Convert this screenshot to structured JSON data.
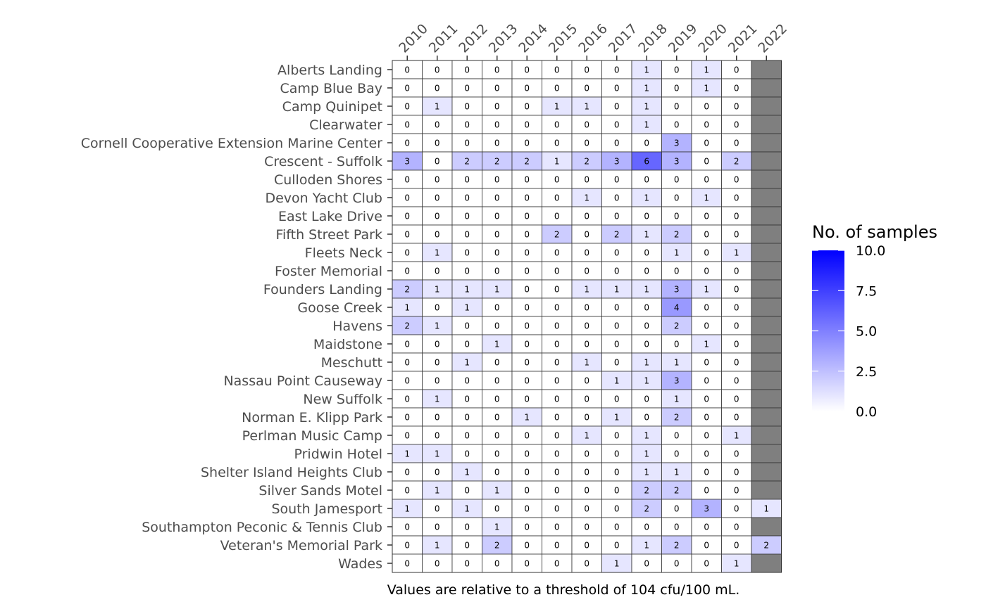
{
  "chart_data": {
    "type": "heatmap",
    "columns": [
      "2010",
      "2011",
      "2012",
      "2013",
      "2014",
      "2015",
      "2016",
      "2017",
      "2018",
      "2019",
      "2020",
      "2021",
      "2022"
    ],
    "rows": [
      {
        "name": "Alberts Landing",
        "values": [
          0,
          0,
          0,
          0,
          0,
          0,
          0,
          0,
          1,
          0,
          1,
          0,
          null
        ]
      },
      {
        "name": "Camp Blue Bay",
        "values": [
          0,
          0,
          0,
          0,
          0,
          0,
          0,
          0,
          1,
          0,
          1,
          0,
          null
        ]
      },
      {
        "name": "Camp Quinipet",
        "values": [
          0,
          1,
          0,
          0,
          0,
          1,
          1,
          0,
          1,
          0,
          0,
          0,
          null
        ]
      },
      {
        "name": "Clearwater",
        "values": [
          0,
          0,
          0,
          0,
          0,
          0,
          0,
          0,
          1,
          0,
          0,
          0,
          null
        ]
      },
      {
        "name": "Cornell Cooperative Extension Marine Center",
        "values": [
          0,
          0,
          0,
          0,
          0,
          0,
          0,
          0,
          0,
          3,
          0,
          0,
          null
        ]
      },
      {
        "name": "Crescent - Suffolk",
        "values": [
          3,
          0,
          2,
          2,
          2,
          1,
          2,
          3,
          6,
          3,
          0,
          2,
          null
        ]
      },
      {
        "name": "Culloden Shores",
        "values": [
          0,
          0,
          0,
          0,
          0,
          0,
          0,
          0,
          0,
          0,
          0,
          0,
          null
        ]
      },
      {
        "name": "Devon Yacht Club",
        "values": [
          0,
          0,
          0,
          0,
          0,
          0,
          1,
          0,
          1,
          0,
          1,
          0,
          null
        ]
      },
      {
        "name": "East Lake Drive",
        "values": [
          0,
          0,
          0,
          0,
          0,
          0,
          0,
          0,
          0,
          0,
          0,
          0,
          null
        ]
      },
      {
        "name": "Fifth Street Park",
        "values": [
          0,
          0,
          0,
          0,
          0,
          2,
          0,
          2,
          1,
          2,
          0,
          0,
          null
        ]
      },
      {
        "name": "Fleets Neck",
        "values": [
          0,
          1,
          0,
          0,
          0,
          0,
          0,
          0,
          0,
          1,
          0,
          1,
          null
        ]
      },
      {
        "name": "Foster Memorial",
        "values": [
          0,
          0,
          0,
          0,
          0,
          0,
          0,
          0,
          0,
          0,
          0,
          0,
          null
        ]
      },
      {
        "name": "Founders Landing",
        "values": [
          2,
          1,
          1,
          1,
          0,
          0,
          1,
          1,
          1,
          3,
          1,
          0,
          null
        ]
      },
      {
        "name": "Goose Creek",
        "values": [
          1,
          0,
          1,
          0,
          0,
          0,
          0,
          0,
          0,
          4,
          0,
          0,
          null
        ]
      },
      {
        "name": "Havens",
        "values": [
          2,
          1,
          0,
          0,
          0,
          0,
          0,
          0,
          0,
          2,
          0,
          0,
          null
        ]
      },
      {
        "name": "Maidstone",
        "values": [
          0,
          0,
          0,
          1,
          0,
          0,
          0,
          0,
          0,
          0,
          1,
          0,
          null
        ]
      },
      {
        "name": "Meschutt",
        "values": [
          0,
          0,
          1,
          0,
          0,
          0,
          1,
          0,
          1,
          1,
          0,
          0,
          null
        ]
      },
      {
        "name": "Nassau Point Causeway",
        "values": [
          0,
          0,
          0,
          0,
          0,
          0,
          0,
          1,
          1,
          3,
          0,
          0,
          null
        ]
      },
      {
        "name": "New Suffolk",
        "values": [
          0,
          1,
          0,
          0,
          0,
          0,
          0,
          0,
          0,
          1,
          0,
          0,
          null
        ]
      },
      {
        "name": "Norman E. Klipp Park",
        "values": [
          0,
          0,
          0,
          0,
          1,
          0,
          0,
          1,
          0,
          2,
          0,
          0,
          null
        ]
      },
      {
        "name": "Perlman Music Camp",
        "values": [
          0,
          0,
          0,
          0,
          0,
          0,
          1,
          0,
          1,
          0,
          0,
          1,
          null
        ]
      },
      {
        "name": "Pridwin Hotel",
        "values": [
          1,
          1,
          0,
          0,
          0,
          0,
          0,
          0,
          1,
          0,
          0,
          0,
          null
        ]
      },
      {
        "name": "Shelter Island Heights Club",
        "values": [
          0,
          0,
          1,
          0,
          0,
          0,
          0,
          0,
          1,
          1,
          0,
          0,
          null
        ]
      },
      {
        "name": "Silver Sands Motel",
        "values": [
          0,
          1,
          0,
          1,
          0,
          0,
          0,
          0,
          2,
          2,
          0,
          0,
          null
        ]
      },
      {
        "name": "South Jamesport",
        "values": [
          1,
          0,
          1,
          0,
          0,
          0,
          0,
          0,
          2,
          0,
          3,
          0,
          1
        ]
      },
      {
        "name": "Southampton Peconic & Tennis Club",
        "values": [
          0,
          0,
          0,
          1,
          0,
          0,
          0,
          0,
          0,
          0,
          0,
          0,
          null
        ]
      },
      {
        "name": "Veteran's Memorial Park",
        "values": [
          0,
          1,
          0,
          2,
          0,
          0,
          0,
          0,
          1,
          2,
          0,
          0,
          2
        ]
      },
      {
        "name": "Wades",
        "values": [
          0,
          0,
          0,
          0,
          0,
          0,
          0,
          1,
          0,
          0,
          0,
          1,
          null
        ]
      }
    ],
    "legend": {
      "title": "No. of samples",
      "range": [
        0,
        10
      ],
      "ticks": [
        "10.0",
        "7.5",
        "5.0",
        "2.5",
        "0.0"
      ],
      "tick_values": [
        10,
        7.5,
        5,
        2.5,
        0
      ],
      "color_low": "#ffffff",
      "color_high": "#0000ff"
    },
    "missing_color": "#7f7f7f",
    "caption": "Values are relative to a threshold of 104 cfu/100 mL."
  }
}
